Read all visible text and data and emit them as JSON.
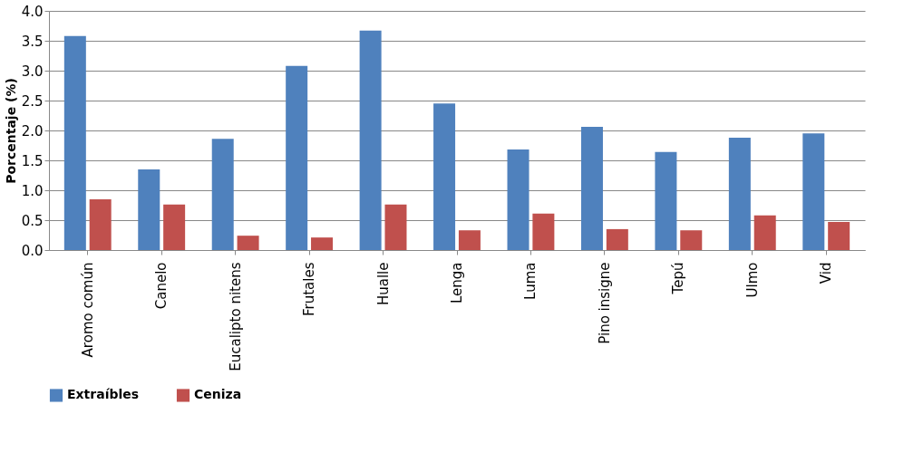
{
  "chart_data": {
    "type": "bar",
    "ylabel": "Porcentaje (%)",
    "categories": [
      "Aromo común",
      "Canelo",
      "Eucalipto nitens",
      "Frutales",
      "Hualle",
      "Lenga",
      "Luma",
      "Pino insigne",
      "Tepú",
      "Ulmo",
      "Vid"
    ],
    "series": [
      {
        "name": "Extraíbles",
        "color": "#4f81bd",
        "values": [
          3.58,
          1.35,
          1.86,
          3.08,
          3.67,
          2.45,
          1.68,
          2.06,
          1.64,
          1.88,
          1.95
        ]
      },
      {
        "name": "Ceniza",
        "color": "#c0504d",
        "values": [
          0.85,
          0.76,
          0.24,
          0.21,
          0.76,
          0.33,
          0.61,
          0.35,
          0.33,
          0.58,
          0.47
        ]
      }
    ],
    "ylim": [
      0,
      4
    ],
    "yticks": [
      {
        "value": 0,
        "label": "0.0"
      },
      {
        "value": 0.5,
        "label": "0.5"
      },
      {
        "value": 1,
        "label": "1.0"
      },
      {
        "value": 1.5,
        "label": "1.5"
      },
      {
        "value": 2,
        "label": "2.0"
      },
      {
        "value": 2.5,
        "label": "2.5"
      },
      {
        "value": 3,
        "label": "3.0"
      },
      {
        "value": 3.5,
        "label": "3.5"
      },
      {
        "value": 4,
        "label": "4.0"
      }
    ],
    "grid": "y",
    "legend": "bottom"
  }
}
